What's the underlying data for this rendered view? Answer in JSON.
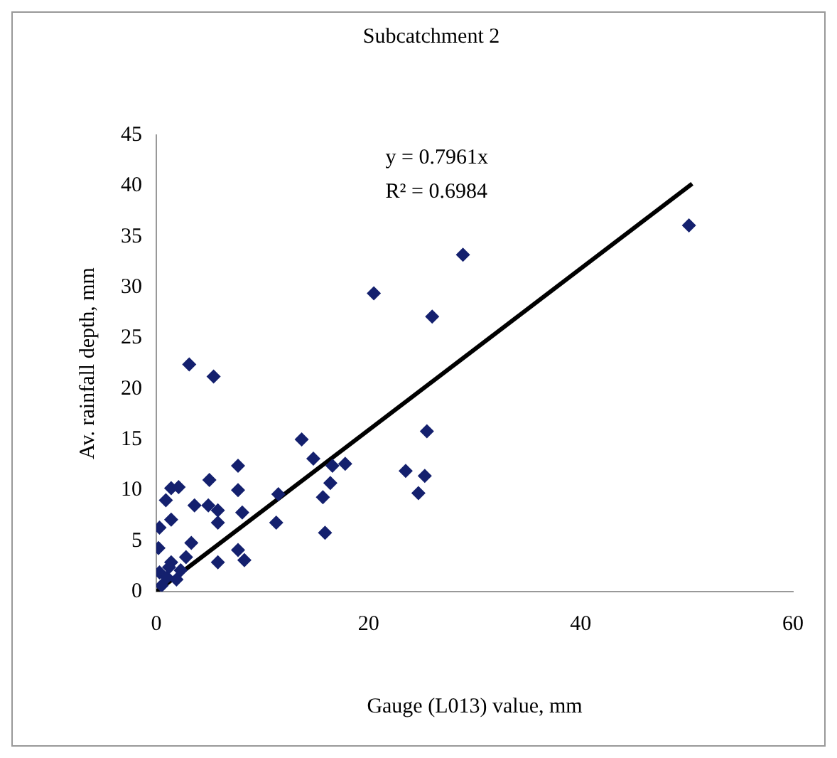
{
  "chart_data": {
    "type": "scatter",
    "title": "Subcatchment 2",
    "xlabel": "Gauge (L013) value, mm",
    "ylabel": "Av. rainfall depth, mm",
    "annotations": [
      "y = 0.7961x",
      "R² = 0.6984"
    ],
    "xlim": [
      0,
      60
    ],
    "xticks": [
      0,
      20,
      40,
      60
    ],
    "ylim": [
      0,
      45
    ],
    "yticks": [
      0,
      5,
      10,
      15,
      20,
      25,
      30,
      35,
      40,
      45
    ],
    "grid": false,
    "legend": false,
    "marker": "diamond",
    "series": [
      {
        "color": "#14206e",
        "x": [
          50.2,
          28.9,
          20.5,
          26.0,
          3.1,
          5.4,
          25.5,
          13.7,
          14.8,
          16.6,
          17.8,
          23.5,
          25.3,
          24.7,
          16.4,
          15.7,
          15.9,
          11.5,
          11.3,
          7.7,
          7.7,
          5.0,
          8.1,
          7.7,
          8.3,
          5.8,
          3.6,
          4.9,
          5.8,
          5.8,
          0.9,
          1.4,
          2.1,
          1.4,
          0.3,
          0.2,
          3.3,
          2.8,
          1.4,
          0.3,
          1.0,
          0.5,
          1.9,
          1.2,
          2.3
        ],
        "values": [
          36.1,
          33.2,
          29.4,
          27.1,
          22.4,
          21.2,
          15.8,
          15.0,
          13.1,
          12.4,
          12.6,
          11.9,
          11.4,
          9.7,
          10.7,
          9.3,
          5.8,
          9.6,
          6.8,
          12.4,
          10.0,
          11.0,
          7.8,
          4.1,
          3.1,
          2.9,
          8.5,
          8.5,
          8.0,
          6.8,
          9.0,
          10.2,
          10.3,
          7.1,
          6.3,
          4.3,
          4.8,
          3.4,
          2.9,
          1.9,
          1.4,
          0.6,
          1.2,
          2.4,
          2.1
        ]
      },
      {
        "type": "line",
        "color": "#000000",
        "marker": "none",
        "x": [
          0,
          50.5
        ],
        "values": [
          0,
          40.2
        ]
      }
    ]
  }
}
